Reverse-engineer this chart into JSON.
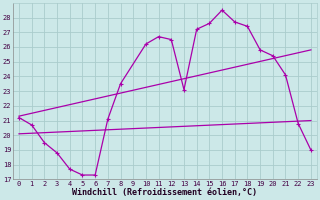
{
  "xlabel": "Windchill (Refroidissement éolien,°C)",
  "bg_color": "#cce8e8",
  "grid_color": "#aacccc",
  "line_color": "#aa00aa",
  "xlim": [
    -0.5,
    23.5
  ],
  "ylim": [
    17,
    29
  ],
  "xticks": [
    0,
    1,
    2,
    3,
    4,
    5,
    6,
    7,
    8,
    9,
    10,
    11,
    12,
    13,
    14,
    15,
    16,
    17,
    18,
    19,
    20,
    21,
    22,
    23
  ],
  "yticks": [
    17,
    18,
    19,
    20,
    21,
    22,
    23,
    24,
    25,
    26,
    27,
    28
  ],
  "curve1_x": [
    0,
    1,
    2,
    3,
    4,
    5,
    6,
    7,
    8,
    10,
    11,
    12,
    13,
    14,
    15,
    16,
    17,
    18,
    19,
    20,
    21,
    22,
    23
  ],
  "curve1_y": [
    21.2,
    20.7,
    19.5,
    18.8,
    17.7,
    17.3,
    17.3,
    21.1,
    23.5,
    26.2,
    26.7,
    26.5,
    23.1,
    27.2,
    27.6,
    28.5,
    27.7,
    27.4,
    25.8,
    25.4,
    24.1,
    20.8,
    19.0
  ],
  "curve2_x": [
    0,
    23
  ],
  "curve2_y": [
    21.3,
    25.8
  ],
  "curve3_x": [
    0,
    23
  ],
  "curve3_y": [
    20.1,
    21.0
  ],
  "marker_size": 2.5,
  "linewidth": 0.9,
  "tick_fontsize": 5,
  "label_fontsize": 6
}
